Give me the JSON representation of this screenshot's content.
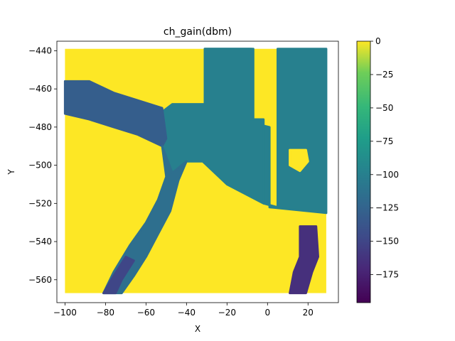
{
  "chart_data": {
    "type": "scatter",
    "title": "ch_gain(dbm)",
    "xlabel": "X",
    "ylabel": "Y",
    "xlim": [
      -104,
      35
    ],
    "ylim": [
      -572,
      -435
    ],
    "xticks": [
      -100,
      -80,
      -60,
      -40,
      -20,
      0,
      20
    ],
    "xtick_labels": [
      "−100",
      "−80",
      "−60",
      "−40",
      "−20",
      "0",
      "20"
    ],
    "yticks": [
      -440,
      -460,
      -480,
      -500,
      -520,
      -540,
      -560
    ],
    "ytick_labels": [
      "−440",
      "−460",
      "−480",
      "−500",
      "−520",
      "−540",
      "−560"
    ],
    "grid_extent": {
      "x": [
        -100,
        29
      ],
      "y": [
        -567,
        -439
      ]
    },
    "colorbar": {
      "label": "",
      "range": [
        -196,
        0
      ],
      "ticks": [
        0,
        -25,
        -50,
        -75,
        -100,
        -125,
        -150,
        -175
      ],
      "tick_labels": [
        "0",
        "−25",
        "−50",
        "−75",
        "−100",
        "−125",
        "−150",
        "−175"
      ],
      "colormap": "viridis"
    },
    "background_value": 0,
    "regions": [
      {
        "name": "upper-right-corridor",
        "value": -100,
        "polygon": [
          [
            -31,
            -439
          ],
          [
            -7,
            -439
          ],
          [
            -7,
            -478
          ],
          [
            1,
            -480
          ],
          [
            1,
            -522
          ],
          [
            29,
            -525
          ],
          [
            29,
            -439
          ],
          [
            5,
            -439
          ],
          [
            5,
            -522
          ],
          [
            -2,
            -520
          ],
          [
            -2,
            -476
          ],
          [
            -8,
            -476
          ],
          [
            -8,
            -439
          ],
          [
            -31,
            -439
          ],
          [
            -31,
            -468
          ],
          [
            -31,
            -439
          ]
        ]
      },
      {
        "name": "center-junction",
        "value": -100,
        "polygon": [
          [
            -47,
            -468
          ],
          [
            -31,
            -468
          ],
          [
            -31,
            -439
          ],
          [
            -8,
            -439
          ],
          [
            -8,
            -476
          ],
          [
            -2,
            -476
          ],
          [
            -2,
            -520
          ],
          [
            -20,
            -510
          ],
          [
            -32,
            -498
          ],
          [
            -40,
            -498
          ],
          [
            -47,
            -504
          ],
          [
            -52,
            -490
          ],
          [
            -52,
            -472
          ]
        ]
      },
      {
        "name": "left-diagonal-band",
        "value": -130,
        "polygon": [
          [
            -100,
            -456
          ],
          [
            -88,
            -456
          ],
          [
            -76,
            -462
          ],
          [
            -64,
            -466
          ],
          [
            -52,
            -470
          ],
          [
            -50,
            -486
          ],
          [
            -52,
            -490
          ],
          [
            -64,
            -484
          ],
          [
            -76,
            -480
          ],
          [
            -88,
            -476
          ],
          [
            -100,
            -473
          ]
        ]
      },
      {
        "name": "lower-diagonal-band",
        "value": -115,
        "polygon": [
          [
            -52,
            -490
          ],
          [
            -47,
            -504
          ],
          [
            -40,
            -498
          ],
          [
            -44,
            -508
          ],
          [
            -48,
            -524
          ],
          [
            -54,
            -536
          ],
          [
            -60,
            -548
          ],
          [
            -66,
            -558
          ],
          [
            -72,
            -567
          ],
          [
            -81,
            -567
          ],
          [
            -76,
            -556
          ],
          [
            -68,
            -542
          ],
          [
            -60,
            -530
          ],
          [
            -54,
            -518
          ],
          [
            -50,
            -506
          ]
        ]
      },
      {
        "name": "lower-diagonal-dark-edge",
        "value": -150,
        "polygon": [
          [
            -81,
            -567
          ],
          [
            -76,
            -558
          ],
          [
            -70,
            -548
          ],
          [
            -66,
            -550
          ],
          [
            -72,
            -560
          ],
          [
            -75,
            -567
          ]
        ]
      },
      {
        "name": "right-dark-patch",
        "value": -165,
        "polygon": [
          [
            16,
            -532
          ],
          [
            24,
            -532
          ],
          [
            25,
            -548
          ],
          [
            22,
            -556
          ],
          [
            19,
            -567
          ],
          [
            11,
            -567
          ],
          [
            13,
            -556
          ],
          [
            16,
            -548
          ]
        ]
      },
      {
        "name": "right-light-hole",
        "value": 0,
        "polygon": [
          [
            11,
            -492
          ],
          [
            19,
            -492
          ],
          [
            20,
            -498
          ],
          [
            16,
            -503
          ],
          [
            11,
            -500
          ]
        ]
      }
    ]
  }
}
